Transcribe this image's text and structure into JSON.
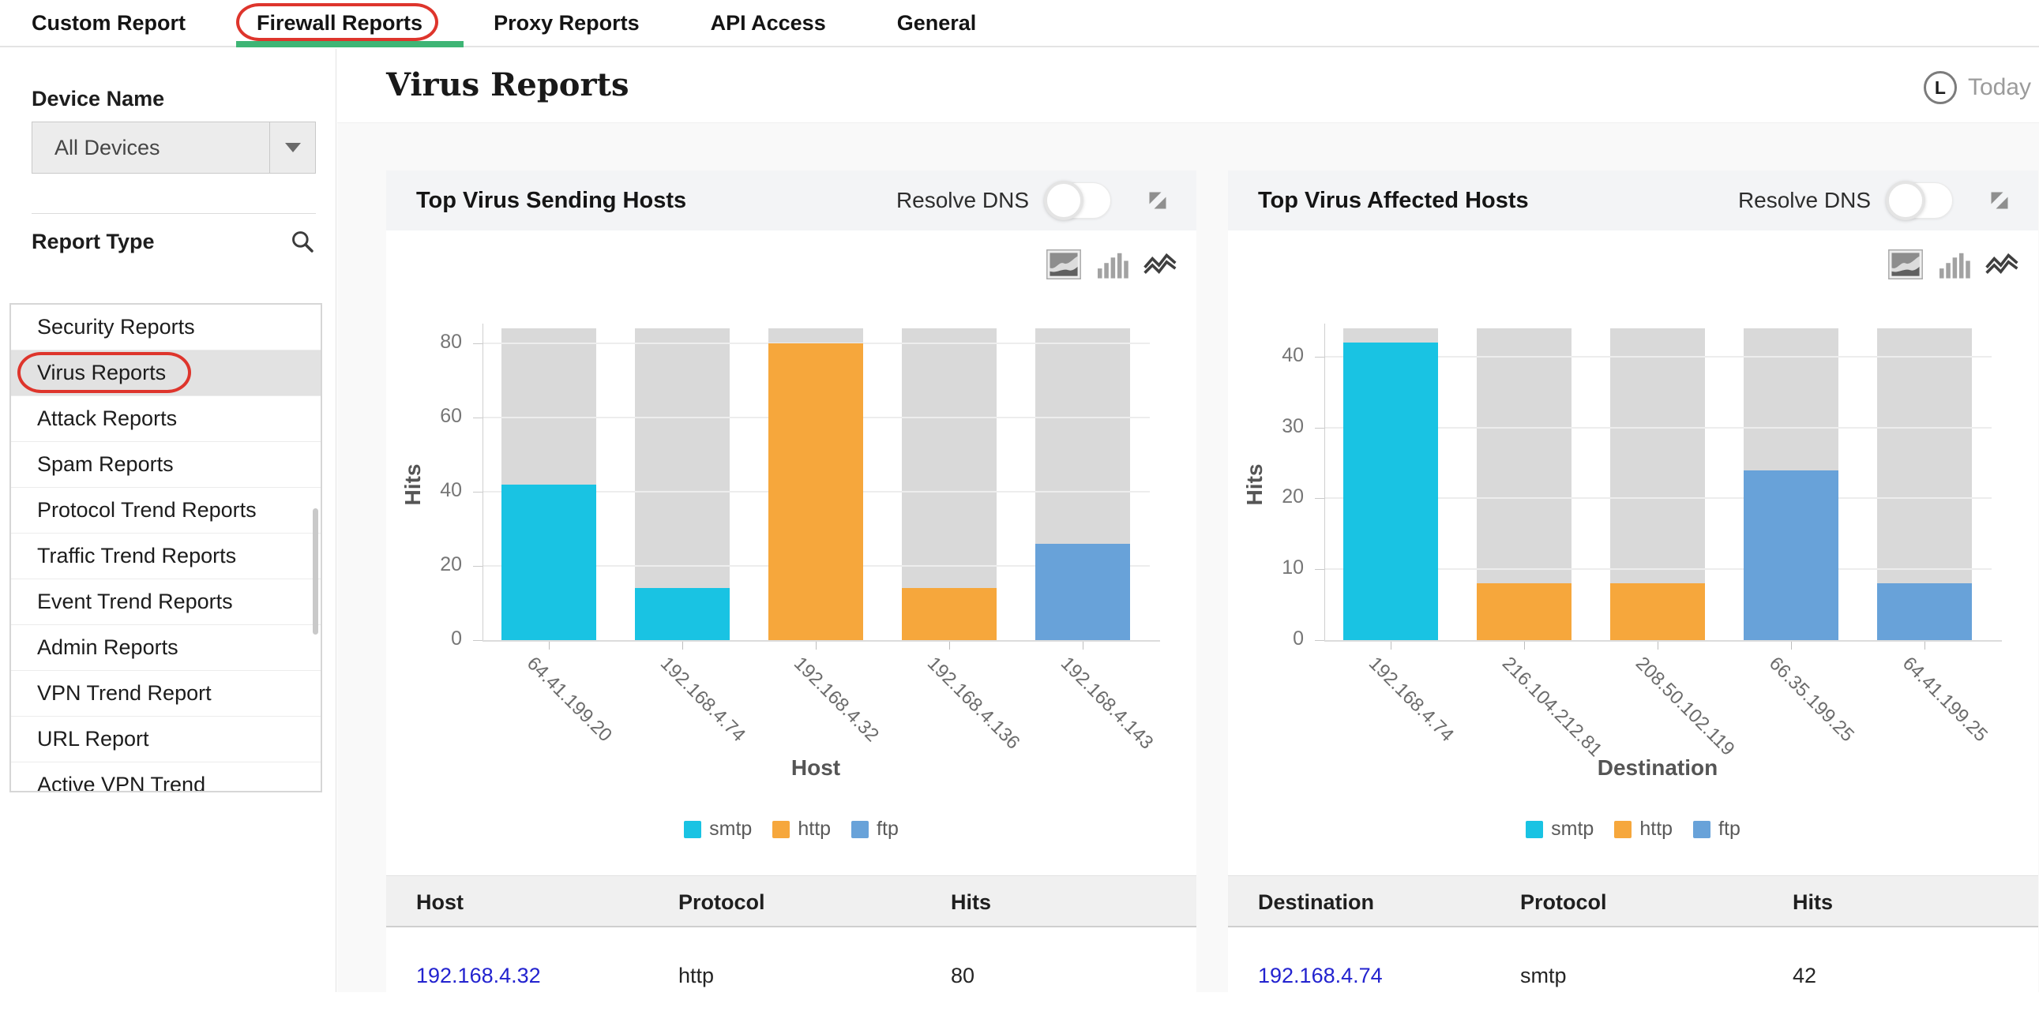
{
  "nav": {
    "tabs": [
      {
        "label": "Custom Report",
        "active": false
      },
      {
        "label": "Firewall Reports",
        "active": true
      },
      {
        "label": "Proxy Reports",
        "active": false
      },
      {
        "label": "API Access",
        "active": false
      },
      {
        "label": "General",
        "active": false
      }
    ]
  },
  "sidebar": {
    "device_name_label": "Device Name",
    "device_selected": "All Devices",
    "report_type_label": "Report Type",
    "report_types": [
      "Security Reports",
      "Virus Reports",
      "Attack Reports",
      "Spam Reports",
      "Protocol Trend Reports",
      "Traffic Trend Reports",
      "Event Trend Reports",
      "Admin Reports",
      "VPN Trend Report",
      "URL Report",
      "Active VPN Trend"
    ],
    "selected_report": "Virus Reports"
  },
  "header": {
    "title": "Virus Reports",
    "time_icon_letter": "L",
    "time_range": "Today"
  },
  "panels": [
    {
      "title": "Top Virus Sending Hosts",
      "resolve_dns_label": "Resolve DNS",
      "resolve_dns_on": false,
      "table": {
        "headers": [
          "Host",
          "Protocol",
          "Hits"
        ],
        "rows": [
          [
            "192.168.4.32",
            "http",
            "80"
          ]
        ]
      }
    },
    {
      "title": "Top Virus Affected Hosts",
      "resolve_dns_label": "Resolve DNS",
      "resolve_dns_on": false,
      "table": {
        "headers": [
          "Destination",
          "Protocol",
          "Hits"
        ],
        "rows": [
          [
            "192.168.4.74",
            "smtp",
            "42"
          ]
        ]
      }
    }
  ],
  "chart_data": [
    {
      "type": "bar",
      "title": "Top Virus Sending Hosts",
      "xlabel": "Host",
      "ylabel": "Hits",
      "categories": [
        "64.41.199.20",
        "192.168.4.74",
        "192.168.4.32",
        "192.168.4.136",
        "192.168.4.143"
      ],
      "values": [
        42,
        14,
        80,
        14,
        26
      ],
      "protocols": [
        "smtp",
        "smtp",
        "http",
        "http",
        "ftp"
      ],
      "legend": [
        "smtp",
        "http",
        "ftp"
      ],
      "yticks": [
        0,
        20,
        40,
        60,
        80
      ],
      "ylim": [
        0,
        84
      ],
      "grid": true,
      "legend_position": "bottom",
      "background_bars": true
    },
    {
      "type": "bar",
      "title": "Top Virus Affected Hosts",
      "xlabel": "Destination",
      "ylabel": "Hits",
      "categories": [
        "192.168.4.74",
        "216.104.212.81",
        "208.50.102.119",
        "66.35.199.25",
        "64.41.199.25"
      ],
      "values": [
        42,
        8,
        8,
        24,
        8
      ],
      "protocols": [
        "smtp",
        "http",
        "http",
        "ftp",
        "ftp"
      ],
      "legend": [
        "smtp",
        "http",
        "ftp"
      ],
      "yticks": [
        0,
        10,
        20,
        30,
        40
      ],
      "ylim": [
        0,
        44
      ],
      "grid": true,
      "legend_position": "bottom",
      "background_bars": true
    }
  ],
  "annotations": {
    "circled_items": [
      "Firewall Reports tab",
      "Virus Reports sidebar item"
    ],
    "circle_color": "#de352c"
  },
  "colors": {
    "smtp": "#19c3e3",
    "http": "#f6a73c",
    "ftp": "#68a2d9",
    "bar_bg": "#d9d9d9",
    "nav_active_underline": "#3eb575",
    "annotation_red": "#de352c",
    "link_blue": "#2323cf",
    "panel_header_bg": "#f3f4f6",
    "table_header_bg": "#f0f0f0"
  }
}
